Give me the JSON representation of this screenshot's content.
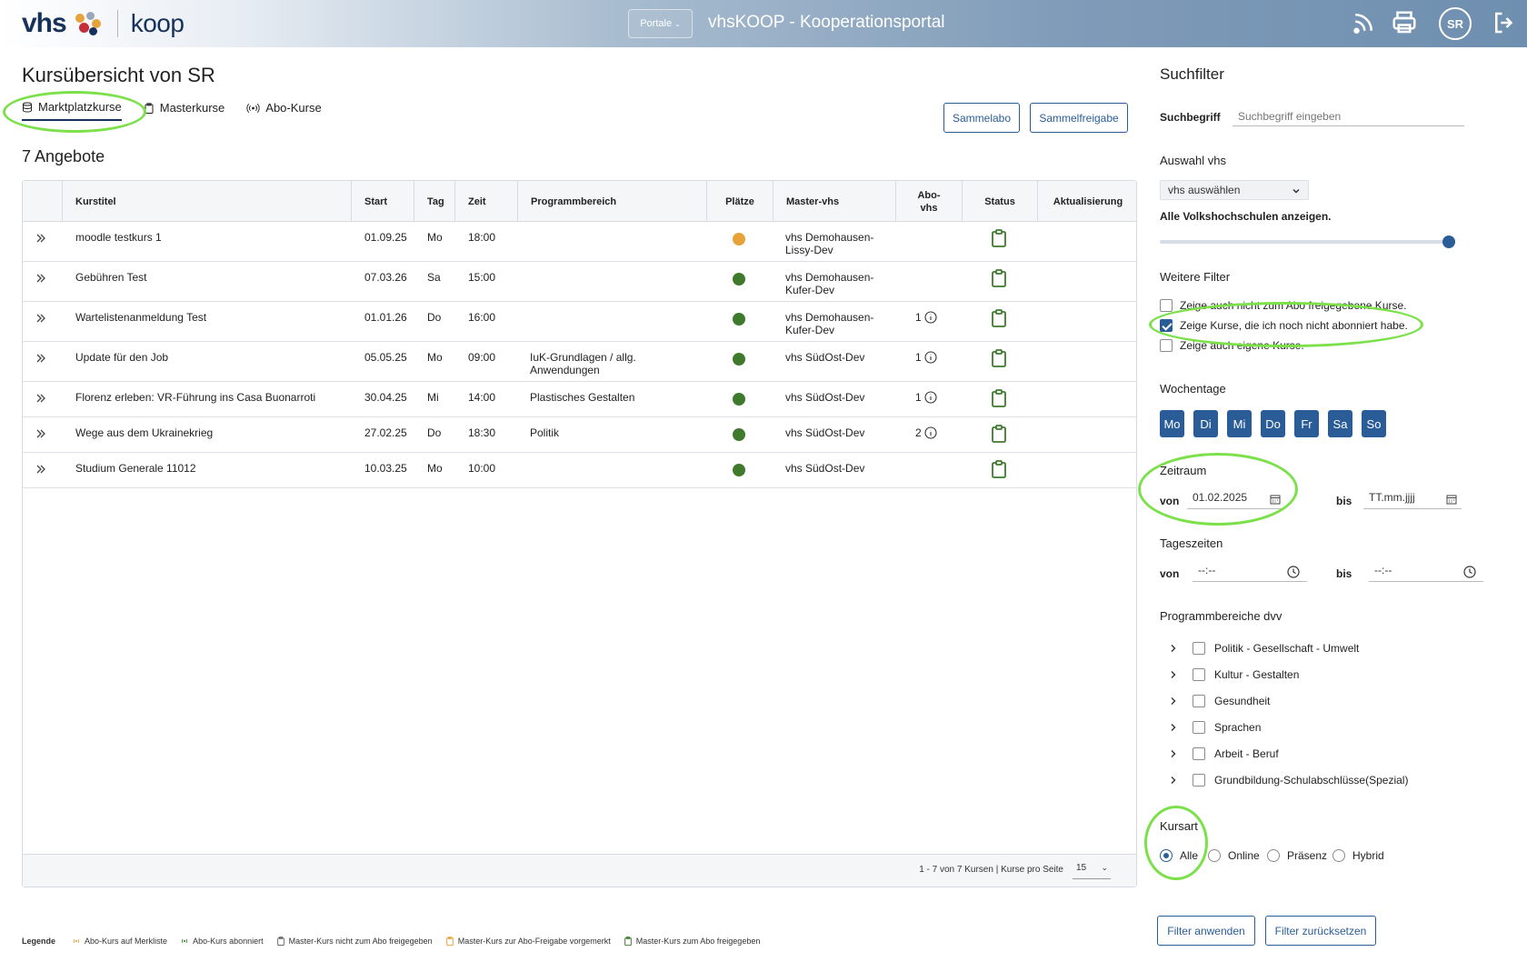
{
  "header": {
    "portale_label": "Portale",
    "app_title": "vhsKOOP - Kooperationsportal",
    "avatar_initials": "SR",
    "logo_vhs": "vhs",
    "logo_koop": "koop"
  },
  "page": {
    "title": "Kursübersicht von SR",
    "tabs": [
      {
        "label": "Marktplatzkurse",
        "icon": "database-icon",
        "active": true
      },
      {
        "label": "Masterkurse",
        "icon": "clipboard-icon",
        "active": false
      },
      {
        "label": "Abo-Kurse",
        "icon": "broadcast-icon",
        "active": false
      }
    ],
    "actions": {
      "sammelabo": "Sammelabo",
      "sammelfreigabe": "Sammelfreigabe"
    },
    "count_title": "7 Angebote"
  },
  "table": {
    "columns": [
      "Kurstitel",
      "Start",
      "Tag",
      "Zeit",
      "Programmbereich",
      "Plätze",
      "Master-vhs",
      "Abo-vhs",
      "Status",
      "Aktualisierung"
    ],
    "rows": [
      {
        "title": "moodle testkurs 1",
        "start": "01.09.25",
        "tag": "Mo",
        "zeit": "18:00",
        "bereich": "",
        "plaetze": "orange",
        "master_vhs": "vhs Demohausen-Lissy-Dev",
        "abo": ""
      },
      {
        "title": "Gebühren Test",
        "start": "07.03.26",
        "tag": "Sa",
        "zeit": "15:00",
        "bereich": "",
        "plaetze": "green",
        "master_vhs": "vhs Demohausen-Kufer-Dev",
        "abo": ""
      },
      {
        "title": "Wartelistenanmeldung Test",
        "start": "01.01.26",
        "tag": "Do",
        "zeit": "16:00",
        "bereich": "",
        "plaetze": "green",
        "master_vhs": "vhs Demohausen-Kufer-Dev",
        "abo": "1"
      },
      {
        "title": "Update für den Job",
        "start": "05.05.25",
        "tag": "Mo",
        "zeit": "09:00",
        "bereich": "IuK-Grundlagen / allg. Anwendungen",
        "plaetze": "green",
        "master_vhs": "vhs SüdOst-Dev",
        "abo": "1"
      },
      {
        "title": "Florenz erleben: VR-Führung ins Casa Buonarroti",
        "start": "30.04.25",
        "tag": "Mi",
        "zeit": "14:00",
        "bereich": "Plastisches Gestalten",
        "plaetze": "green",
        "master_vhs": "vhs SüdOst-Dev",
        "abo": "1"
      },
      {
        "title": "Wege aus dem Ukrainekrieg",
        "start": "27.02.25",
        "tag": "Do",
        "zeit": "18:30",
        "bereich": "Politik",
        "plaetze": "green",
        "master_vhs": "vhs SüdOst-Dev",
        "abo": "2"
      },
      {
        "title": "Studium Generale 11012",
        "start": "10.03.25",
        "tag": "Mo",
        "zeit": "10:00",
        "bereich": "",
        "plaetze": "green",
        "master_vhs": "vhs SüdOst-Dev",
        "abo": ""
      }
    ],
    "pager_text": "1 - 7 von 7 Kursen | Kurse pro Seite",
    "per_page": "15"
  },
  "legend": {
    "title": "Legende",
    "items": [
      "Abo-Kurs auf Merkliste",
      "Abo-Kurs abonniert",
      "Master-Kurs nicht zum Abo freigegeben",
      "Master-Kurs zur Abo-Freigabe vorgemerkt",
      "Master-Kurs zum Abo freigegeben"
    ]
  },
  "filter": {
    "title": "Suchfilter",
    "search_label": "Suchbegriff",
    "search_placeholder": "Suchbegriff eingeben",
    "vhs_section": "Auswahl vhs",
    "vhs_select": "vhs auswählen",
    "all_vhs_label": "Alle Volkshochschulen anzeigen.",
    "more_filters": "Weitere Filter",
    "checks": [
      {
        "label": "Zeige auch nicht zum Abo freigegebene Kurse.",
        "checked": false
      },
      {
        "label": "Zeige Kurse, die ich noch nicht abonniert habe.",
        "checked": true
      },
      {
        "label": "Zeige auch eigene Kurse.",
        "checked": false
      }
    ],
    "weekdays_label": "Wochentage",
    "weekdays": [
      "Mo",
      "Di",
      "Mi",
      "Do",
      "Fr",
      "Sa",
      "So"
    ],
    "period_label": "Zeitraum",
    "from_label": "von",
    "to_label": "bis",
    "period_from": "01.02.2025",
    "period_to": "TT.mm.jjjj",
    "daytime_label": "Tageszeiten",
    "time_from": "--:--",
    "time_to": "--:--",
    "programs_label": "Programmbereiche dvv",
    "programs": [
      "Politik - Gesellschaft - Umwelt",
      "Kultur - Gestalten",
      "Gesundheit",
      "Sprachen",
      "Arbeit - Beruf",
      "Grundbildung-Schulabschlüsse(Spezial)"
    ],
    "course_type_label": "Kursart",
    "course_types": [
      {
        "label": "Alle",
        "selected": true
      },
      {
        "label": "Online",
        "selected": false
      },
      {
        "label": "Präsenz",
        "selected": false
      },
      {
        "label": "Hybrid",
        "selected": false
      }
    ],
    "apply": "Filter anwenden",
    "reset": "Filter zurücksetzen"
  },
  "colors": {
    "accent": "#2a5d98",
    "green": "#3f7a2c",
    "orange": "#e8a23a",
    "annotation": "#7be04a"
  }
}
